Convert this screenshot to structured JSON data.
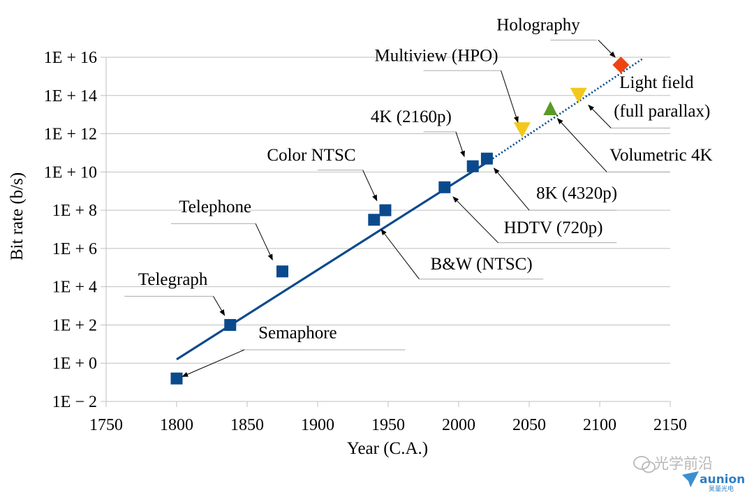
{
  "chart_data": {
    "type": "scatter",
    "xlabel": "Year (C.A.)",
    "ylabel": "Bit rate (b/s)",
    "xlim": [
      1750,
      2150
    ],
    "ylim": [
      -2,
      16
    ],
    "y_scale": "log",
    "grid": "horizontal",
    "x_ticks": [
      1750,
      1800,
      1850,
      1900,
      1950,
      2000,
      2050,
      2100,
      2150
    ],
    "y_ticks": [
      {
        "value": 16,
        "label": "1E + 16"
      },
      {
        "value": 14,
        "label": "1E + 14"
      },
      {
        "value": 12,
        "label": "1E + 12"
      },
      {
        "value": 10,
        "label": "1E + 10"
      },
      {
        "value": 8,
        "label": "1E + 8"
      },
      {
        "value": 6,
        "label": "1E + 6"
      },
      {
        "value": 4,
        "label": "1E + 4"
      },
      {
        "value": 2,
        "label": "1E + 2"
      },
      {
        "value": 0,
        "label": "1E + 0"
      },
      {
        "value": -2,
        "label": "1E − 2"
      }
    ],
    "points": [
      {
        "label": "Semaphore",
        "x": 1800,
        "y": -0.8,
        "marker": "square",
        "color": "#0a4a8c"
      },
      {
        "label": "Telegraph",
        "x": 1838,
        "y": 2.0,
        "marker": "square",
        "color": "#0a4a8c"
      },
      {
        "label": "Telephone",
        "x": 1875,
        "y": 4.8,
        "marker": "square",
        "color": "#0a4a8c"
      },
      {
        "label": "B&W (NTSC)",
        "x": 1940,
        "y": 7.5,
        "marker": "square",
        "color": "#0a4a8c"
      },
      {
        "label": "Color NTSC",
        "x": 1948,
        "y": 8.0,
        "marker": "square",
        "color": "#0a4a8c"
      },
      {
        "label": "HDTV (720p)",
        "x": 1990,
        "y": 9.2,
        "marker": "square",
        "color": "#0a4a8c"
      },
      {
        "label": "4K (2160p)",
        "x": 2010,
        "y": 10.3,
        "marker": "square",
        "color": "#0a4a8c"
      },
      {
        "label": "8K (4320p)",
        "x": 2020,
        "y": 10.7,
        "marker": "square",
        "color": "#0a4a8c"
      },
      {
        "label": "Multiview (HPO)",
        "x": 2045,
        "y": 12.2,
        "marker": "triangle-down",
        "color": "#f2c81e"
      },
      {
        "label": "Volumetric 4K",
        "x": 2065,
        "y": 13.3,
        "marker": "triangle-up",
        "color": "#5a9a26"
      },
      {
        "label": "Light field (full parallax)",
        "x": 2085,
        "y": 14.0,
        "marker": "triangle-down",
        "color": "#f2c81e"
      },
      {
        "label": "Holography",
        "x": 2115,
        "y": 15.6,
        "marker": "diamond",
        "color": "#ec4511"
      }
    ],
    "trend_solid": {
      "x": [
        1800,
        2020
      ],
      "y": [
        0.2,
        10.5
      ],
      "color": "#0a4a8c"
    },
    "trend_dotted": {
      "x": [
        2020,
        2130
      ],
      "y": [
        10.5,
        15.9
      ],
      "color": "#0a4a8c"
    },
    "annotations": [
      {
        "text": "Holography",
        "point": 11,
        "anchor": "end",
        "tx": 2086,
        "ty": 17.4,
        "uy": 16.9,
        "ux1": 2065,
        "ux2": 2098,
        "arrow_from": [
          2099,
          16.9
        ],
        "arrow_to": [
          2111,
          16.0
        ]
      },
      {
        "text": "Multiview (HPO)",
        "point": 8,
        "anchor": "end",
        "tx": 2028,
        "ty": 15.8,
        "uy": 15.3,
        "ux1": 1975,
        "ux2": 2030,
        "arrow_from": [
          2030,
          15.3
        ],
        "arrow_to": [
          2042,
          12.6
        ]
      },
      {
        "text": "4K (2160p)",
        "point": 6,
        "anchor": "end",
        "tx": 1995,
        "ty": 12.6,
        "uy": 12.1,
        "ux1": 1975,
        "ux2": 1998,
        "arrow_from": [
          1998,
          12.1
        ],
        "arrow_to": [
          2004,
          10.8
        ]
      },
      {
        "text": "Color NTSC",
        "point": 4,
        "anchor": "end",
        "tx": 1927,
        "ty": 10.6,
        "uy": 10.1,
        "ux1": 1900,
        "ux2": 1932,
        "arrow_from": [
          1932,
          10.1
        ],
        "arrow_to": [
          1942,
          8.5
        ]
      },
      {
        "text": "Telephone",
        "point": 2,
        "anchor": "end",
        "tx": 1853,
        "ty": 7.9,
        "uy": 7.3,
        "ux1": 1796,
        "ux2": 1856,
        "arrow_from": [
          1856,
          7.3
        ],
        "arrow_to": [
          1868,
          5.4
        ]
      },
      {
        "text": "Telegraph",
        "point": 1,
        "anchor": "end",
        "tx": 1822,
        "ty": 4.1,
        "uy": 3.5,
        "ux1": 1763,
        "ux2": 1826,
        "arrow_from": [
          1826,
          3.5
        ],
        "arrow_to": [
          1834,
          2.5
        ]
      },
      {
        "text": "Semaphore",
        "point": 0,
        "anchor": "start",
        "tx": 1858,
        "ty": 1.3,
        "uy": 0.7,
        "ux1": 1845,
        "ux2": 1962,
        "arrow_from": [
          1848,
          0.7
        ],
        "arrow_to": [
          1804,
          -0.7
        ]
      },
      {
        "text": "B&W (NTSC)",
        "point": 3,
        "anchor": "start",
        "tx": 1980,
        "ty": 4.9,
        "uy": 4.4,
        "ux1": 1972,
        "ux2": 2060,
        "arrow_from": [
          1972,
          4.4
        ],
        "arrow_to": [
          1945,
          7.0
        ]
      },
      {
        "text": "HDTV (720p)",
        "point": 5,
        "anchor": "start",
        "tx": 2032,
        "ty": 6.8,
        "uy": 6.3,
        "ux1": 2028,
        "ux2": 2112,
        "arrow_from": [
          2028,
          6.3
        ],
        "arrow_to": [
          1996,
          8.7
        ]
      },
      {
        "text": "8K (4320p)",
        "point": 7,
        "anchor": "start",
        "tx": 2055,
        "ty": 8.6,
        "uy": 8.0,
        "ux1": 2050,
        "ux2": 2112,
        "arrow_from": [
          2050,
          8.0
        ],
        "arrow_to": [
          2025,
          10.2
        ]
      },
      {
        "text": "Volumetric 4K",
        "point": 9,
        "anchor": "start",
        "tx": 2107,
        "ty": 10.6,
        "uy": 10.0,
        "ux1": 2105,
        "ux2": 2150,
        "arrow_from": [
          2105,
          10.0
        ],
        "arrow_to": [
          2070,
          12.8
        ]
      },
      {
        "text": "Light field",
        "point": 10,
        "anchor": "start",
        "tx": 2114,
        "ty": 14.4,
        "uy": null
      },
      {
        "text": "(full parallax)",
        "point": 10,
        "anchor": "start",
        "tx": 2110,
        "ty": 12.9,
        "uy": 12.3,
        "ux1": 2108,
        "ux2": 2150,
        "arrow_from": [
          2108,
          12.3
        ],
        "arrow_to": [
          2092,
          13.5
        ]
      }
    ]
  },
  "watermark": {
    "text": "光学前沿",
    "brand": "aunion",
    "sub": "昊量光电"
  }
}
